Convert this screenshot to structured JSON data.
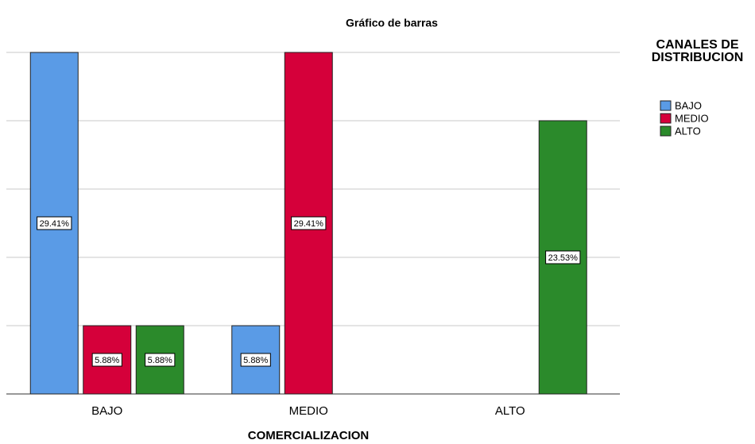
{
  "chart_data": {
    "type": "bar",
    "title": "Gráfico de barras",
    "x_label": "COMERCIALIZACION",
    "legend_title": "CANALES DE DISTRIBUCION",
    "legend": "right",
    "categories": [
      "BAJO",
      "MEDIO",
      "ALTO"
    ],
    "series": [
      {
        "name": "BAJO",
        "color": "#5a9be6",
        "values": [
          29.41,
          5.88,
          null
        ],
        "value_labels": [
          "29.41%",
          "5.88%",
          null
        ]
      },
      {
        "name": "MEDIO",
        "color": "#d5003a",
        "values": [
          5.88,
          29.41,
          null
        ],
        "value_labels": [
          "5.88%",
          "29.41%",
          null
        ]
      },
      {
        "name": "ALTO",
        "color": "#2b8a2b",
        "values": [
          5.88,
          null,
          23.53
        ],
        "value_labels": [
          "5.88%",
          null,
          "23.53%"
        ]
      }
    ],
    "ylim": [
      0,
      29.41
    ],
    "yticks": [
      0,
      5.88,
      11.76,
      17.65,
      23.53,
      29.41
    ],
    "grid": true
  }
}
